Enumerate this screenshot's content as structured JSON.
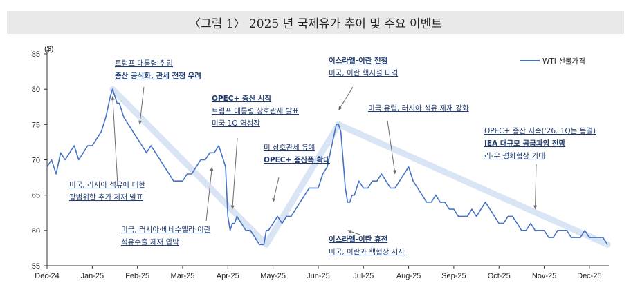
{
  "title": "〈그림 1〉 2025 년 국제유가 추이 및 주요 이벤트",
  "chart_data": {
    "type": "line",
    "ylabel": "($)",
    "ylim": [
      55,
      85
    ],
    "yticks": [
      55,
      60,
      65,
      70,
      75,
      80,
      85
    ],
    "xticks": [
      "Dec-24",
      "Jan-25",
      "Feb-25",
      "Mar-25",
      "Apr-25",
      "May-25",
      "Jun-25",
      "Jul-25",
      "Aug-25",
      "Sep-25",
      "Oct-25",
      "Nov-25",
      "Dec-25"
    ],
    "legend": "top-right",
    "grid": false,
    "series": [
      {
        "name": "WTI 선물가격",
        "color": "#4472c4",
        "x": [
          0,
          0.1,
          0.2,
          0.3,
          0.4,
          0.5,
          0.6,
          0.7,
          0.8,
          0.9,
          1.0,
          1.1,
          1.2,
          1.3,
          1.4,
          1.45,
          1.5,
          1.55,
          1.6,
          1.7,
          1.8,
          1.9,
          2.0,
          2.1,
          2.2,
          2.3,
          2.4,
          2.5,
          2.6,
          2.7,
          2.8,
          2.9,
          3.0,
          3.1,
          3.2,
          3.3,
          3.4,
          3.5,
          3.6,
          3.7,
          3.8,
          3.85,
          3.9,
          3.95,
          4.0,
          4.05,
          4.1,
          4.15,
          4.2,
          4.3,
          4.4,
          4.5,
          4.6,
          4.7,
          4.8,
          4.85,
          4.9,
          5.0,
          5.1,
          5.2,
          5.3,
          5.4,
          5.5,
          5.6,
          5.7,
          5.8,
          5.9,
          6.0,
          6.1,
          6.2,
          6.3,
          6.4,
          6.45,
          6.5,
          6.55,
          6.6,
          6.65,
          6.7,
          6.75,
          6.8,
          6.9,
          7.0,
          7.1,
          7.2,
          7.3,
          7.4,
          7.5,
          7.6,
          7.7,
          7.8,
          7.9,
          8.0,
          8.1,
          8.2,
          8.3,
          8.4,
          8.5,
          8.6,
          8.7,
          8.8,
          8.9,
          9.0,
          9.1,
          9.2,
          9.3,
          9.4,
          9.5,
          9.6,
          9.7,
          9.8,
          9.9,
          10.0,
          10.1,
          10.2,
          10.3,
          10.4,
          10.5,
          10.6,
          10.7,
          10.8,
          10.9,
          11.0,
          11.1,
          11.2,
          11.3,
          11.4,
          11.5,
          11.6,
          11.7,
          11.8,
          11.9,
          12.0,
          12.1,
          12.2,
          12.3,
          12.4
        ],
        "y": [
          69,
          70,
          68,
          71,
          70,
          71,
          72,
          70,
          71,
          72,
          72,
          73,
          74,
          76,
          79,
          80,
          79,
          78,
          78,
          76,
          75,
          74,
          73,
          72,
          71,
          72,
          71,
          70,
          69,
          68,
          67,
          67,
          67,
          68,
          68,
          69,
          70,
          70,
          71,
          71,
          72,
          71,
          70,
          69,
          62,
          60,
          61,
          61,
          62,
          61,
          60,
          60,
          59,
          58,
          58,
          60,
          60,
          61,
          62,
          61,
          62,
          62,
          63,
          64,
          65,
          66,
          66,
          66,
          68,
          69,
          72,
          75,
          75,
          74,
          70,
          66,
          64,
          64,
          65,
          65,
          67,
          66,
          66,
          67,
          67,
          68,
          67,
          66,
          66,
          67,
          68,
          69,
          67,
          66,
          65,
          64,
          64,
          65,
          64,
          64,
          63,
          63,
          62,
          62,
          62,
          63,
          62,
          63,
          64,
          63,
          62,
          61,
          61,
          62,
          62,
          61,
          60,
          60,
          61,
          60,
          60,
          60,
          59,
          59,
          60,
          60,
          60,
          59,
          59,
          59,
          60,
          59,
          59,
          59,
          59,
          58
        ]
      }
    ],
    "trend_segments": [
      {
        "from": [
          1.45,
          80
        ],
        "to": [
          4.85,
          58
        ]
      },
      {
        "from": [
          4.85,
          58
        ],
        "to": [
          6.45,
          75
        ]
      },
      {
        "from": [
          6.45,
          75
        ],
        "to": [
          12.4,
          58
        ]
      }
    ],
    "annotations": [
      {
        "lines": [
          "트럼프 대통령 취임",
          "증산 공식화, 관세 전쟁 우려"
        ],
        "bold": [
          false,
          true
        ],
        "arrow_to": [
          2.05,
          75
        ]
      },
      {
        "lines": [
          "미국, 러시아 석유에 대한",
          "광범위한 추가 제재 발표"
        ],
        "bold": [
          false,
          false
        ],
        "arrow_to": [
          1.45,
          79
        ]
      },
      {
        "lines": [
          "OPEC+ 증산 시작",
          "트럼프 대통령 상호관세 발표",
          "미국 1Q 역성장"
        ],
        "bold": [
          true,
          false,
          false
        ],
        "arrow_to": [
          4.1,
          63
        ]
      },
      {
        "lines": [
          "미국, 러시아·베네수엘라·이란",
          "석유수출 제재 압박"
        ],
        "bold": [
          false,
          false
        ],
        "arrow_to": [
          3.65,
          69
        ]
      },
      {
        "lines": [
          "미 상호관세 유예",
          "OPEC+ 증산폭 확대"
        ],
        "bold": [
          false,
          true
        ],
        "arrow_to": [
          5.0,
          64
        ]
      },
      {
        "lines": [
          "이스라엘-이란 전쟁",
          "미국, 이란 핵시설 타격"
        ],
        "bold": [
          true,
          false
        ],
        "arrow_to": [
          6.45,
          77
        ]
      },
      {
        "lines": [
          "이스라엘-이란 휴전",
          "미국, 이란과 핵협상 시사"
        ],
        "bold": [
          true,
          false
        ],
        "arrow_to": [
          6.65,
          60
        ]
      },
      {
        "lines": [
          "미국·유럽, 러시아 석유 제재 강화"
        ],
        "bold": [
          false
        ],
        "arrow_to": [
          7.7,
          68
        ]
      },
      {
        "lines": [
          "OPEC+ 증산 지속('26. 1Q는 동결)",
          "IEA 대규모 공급과잉 전망",
          "러-우 평화협상 기대"
        ],
        "bold": [
          false,
          true,
          false
        ],
        "arrow_to": [
          10.8,
          63
        ]
      }
    ]
  }
}
